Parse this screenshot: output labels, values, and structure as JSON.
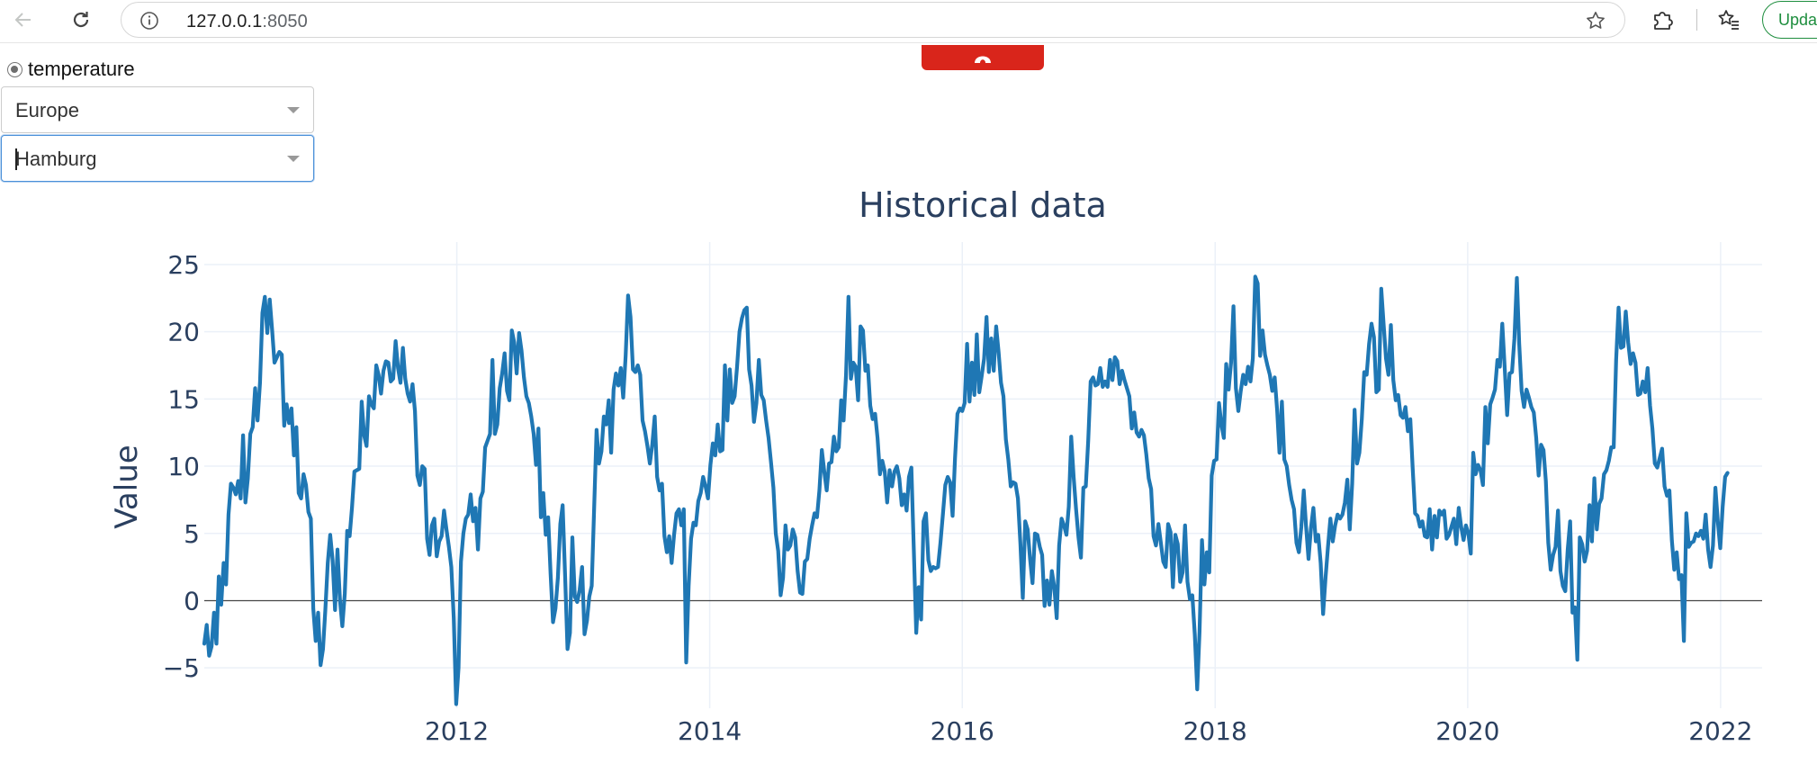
{
  "browser": {
    "url_host": "127.0.0.1",
    "url_port": ":8050",
    "update_label": "Upda"
  },
  "controls": {
    "radio_label": "temperature",
    "region_value": "Europe",
    "city_value": "Hamburg"
  },
  "chart_data": {
    "type": "line",
    "title": "Historical data",
    "xlabel": "",
    "ylabel": "Value",
    "xlim": [
      "2010-01-01",
      "2022-05-01"
    ],
    "ylim": [
      -8,
      26
    ],
    "x_ticks": [
      "2012",
      "2014",
      "2016",
      "2018",
      "2020",
      "2022"
    ],
    "y_ticks": [
      -5,
      0,
      5,
      10,
      15,
      20,
      25
    ],
    "grid": true,
    "series_color": "#1f77b4",
    "series": [
      {
        "x_start": "2010-01-01",
        "step_days": 7,
        "values": [
          -3.2,
          -1.8,
          -4.1,
          -3.4,
          -0.9,
          -3.2,
          1.8,
          -0.3,
          2.8,
          1.2,
          6.4,
          8.7,
          8.4,
          7.9,
          8.9,
          7.6,
          12.3,
          7.3,
          9.1,
          12.4,
          12.9,
          15.8,
          13.4,
          16.2,
          21.4,
          22.6,
          19.9,
          22.4,
          20.2,
          17.7,
          18.1,
          18.5,
          18.3,
          13.0,
          14.6,
          13.2,
          14.3,
          10.8,
          12.9,
          8.0,
          7.6,
          9.4,
          8.6,
          6.6,
          6.1,
          -0.6,
          -3.0,
          -0.9,
          -4.8,
          -3.6,
          -0.7,
          2.8,
          4.9,
          3.0,
          -0.7,
          3.8,
          0.1,
          -1.9,
          0.5,
          5.2,
          4.8,
          6.9,
          9.6,
          9.7,
          9.8,
          14.8,
          12.3,
          11.5,
          15.2,
          14.6,
          14.3,
          17.5,
          16.8,
          15.4,
          17.1,
          17.8,
          17.7,
          16.3,
          16.5,
          19.3,
          17.3,
          16.2,
          18.8,
          16.5,
          15.4,
          14.8,
          16.1,
          14.1,
          9.3,
          8.6,
          10.0,
          9.8,
          4.6,
          3.4,
          5.6,
          6.1,
          3.3,
          4.4,
          4.8,
          6.7,
          5.3,
          4.0,
          2.5,
          -1.3,
          -7.7,
          -5.0,
          2.9,
          5.0,
          6.1,
          6.4,
          7.9,
          5.9,
          6.9,
          3.8,
          7.6,
          8.1,
          11.4,
          11.9,
          12.4,
          17.9,
          12.4,
          13.1,
          15.8,
          16.9,
          18.4,
          15.6,
          14.9,
          20.1,
          19.2,
          16.9,
          19.9,
          18.6,
          16.6,
          15.2,
          14.7,
          13.7,
          12.4,
          10.1,
          12.8,
          6.2,
          8.0,
          4.9,
          6.2,
          2.0,
          -1.6,
          -0.6,
          1.7,
          5.7,
          7.1,
          1.9,
          -3.6,
          -2.4,
          4.7,
          0.3,
          -0.1,
          0.8,
          2.5,
          -2.5,
          -1.5,
          0.3,
          1.1,
          6.9,
          12.7,
          10.2,
          11.1,
          13.7,
          13.1,
          14.9,
          11.0,
          15.7,
          16.9,
          16.0,
          17.3,
          15.1,
          18.2,
          22.7,
          21.1,
          17.2,
          17.0,
          17.5,
          16.8,
          13.4,
          12.6,
          11.5,
          10.2,
          11.6,
          13.7,
          9.2,
          8.2,
          8.7,
          4.8,
          3.6,
          4.8,
          2.8,
          4.9,
          6.5,
          6.8,
          5.6,
          6.8,
          -4.6,
          1.1,
          4.6,
          5.8,
          5.6,
          7.4,
          8.0,
          9.2,
          8.5,
          7.6,
          10.1,
          11.7,
          10.8,
          13.1,
          11.1,
          11.2,
          17.5,
          13.4,
          17.2,
          14.7,
          15.2,
          17.4,
          20.0,
          21.0,
          21.6,
          21.8,
          17.2,
          16.0,
          13.3,
          14.7,
          17.9,
          15.3,
          14.9,
          13.4,
          12.1,
          10.3,
          8.4,
          5.0,
          3.7,
          0.4,
          1.7,
          5.6,
          3.8,
          4.1,
          5.3,
          4.7,
          2.2,
          0.6,
          0.5,
          2.9,
          3.1,
          4.6,
          5.6,
          6.5,
          6.2,
          8.2,
          11.2,
          9.6,
          8.2,
          10.2,
          10.3,
          12.2,
          11.1,
          11.4,
          14.9,
          13.4,
          16.8,
          22.6,
          16.5,
          17.7,
          17.4,
          14.9,
          20.4,
          20.1,
          17.1,
          17.5,
          14.5,
          13.5,
          13.9,
          12.1,
          9.4,
          10.4,
          9.6,
          7.3,
          9.7,
          8.5,
          9.6,
          10.0,
          9.1,
          7.1,
          7.9,
          6.7,
          9.2,
          9.9,
          3.8,
          -2.4,
          1.0,
          -1.4,
          5.9,
          6.5,
          3.0,
          2.2,
          2.5,
          2.4,
          2.5,
          4.3,
          6.4,
          8.6,
          9.2,
          8.8,
          6.3,
          10.6,
          13.9,
          14.3,
          14.1,
          14.7,
          19.1,
          14.8,
          17.7,
          15.3,
          19.8,
          15.5,
          16.7,
          18.0,
          21.1,
          17.0,
          19.5,
          17.1,
          20.4,
          18.5,
          16.2,
          15.2,
          12.0,
          10.5,
          8.5,
          8.8,
          8.7,
          7.6,
          4.3,
          0.2,
          5.9,
          5.3,
          3.1,
          1.3,
          5.0,
          4.9,
          4.0,
          3.4,
          -0.4,
          1.5,
          -0.3,
          2.2,
          1.0,
          -1.3,
          4.1,
          6.1,
          5.6,
          4.9,
          7.0,
          12.2,
          9.2,
          6.8,
          4.7,
          3.2,
          8.4,
          8.5,
          11.9,
          16.3,
          16.6,
          16.0,
          16.1,
          17.3,
          15.9,
          16.3,
          15.9,
          17.9,
          16.4,
          18.1,
          17.8,
          16.1,
          17.1,
          16.4,
          15.8,
          15.2,
          12.8,
          14.0,
          12.5,
          12.2,
          12.7,
          12.3,
          10.9,
          9.1,
          8.3,
          4.8,
          4.1,
          5.7,
          4.3,
          2.9,
          2.5,
          5.7,
          5.1,
          1.0,
          4.9,
          4.2,
          1.4,
          2.1,
          5.6,
          1.4,
          0.1,
          0.4,
          -2.5,
          -6.6,
          -2.3,
          4.5,
          1.2,
          3.6,
          2.1,
          9.3,
          10.4,
          10.5,
          14.7,
          13.1,
          12.1,
          17.6,
          15.7,
          17.7,
          21.9,
          15.8,
          14.1,
          15.6,
          16.8,
          16.1,
          17.4,
          16.3,
          18.0,
          24.1,
          23.6,
          18.2,
          20.1,
          18.3,
          17.5,
          16.8,
          15.6,
          16.6,
          14.2,
          11.0,
          14.8,
          10.5,
          10.0,
          8.6,
          7.5,
          6.8,
          4.3,
          3.6,
          5.5,
          8.2,
          5.5,
          3.1,
          5.4,
          6.9,
          4.4,
          4.9,
          2.8,
          -1.0,
          1.7,
          4.0,
          6.1,
          4.4,
          5.6,
          6.4,
          6.1,
          6.4,
          7.3,
          9.0,
          5.3,
          8.7,
          14.2,
          10.2,
          11.0,
          13.5,
          17.0,
          16.8,
          19.1,
          20.6,
          19.6,
          15.5,
          15.7,
          23.2,
          20.5,
          18.0,
          16.8,
          20.5,
          16.4,
          14.9,
          15.3,
          13.8,
          13.6,
          14.4,
          12.6,
          13.5,
          9.9,
          6.5,
          6.3,
          5.5,
          5.9,
          4.8,
          4.7,
          6.8,
          3.8,
          6.3,
          4.7,
          6.7,
          6.4,
          6.7,
          4.6,
          4.9,
          5.5,
          6.1,
          4.2,
          6.9,
          5.5,
          4.5,
          5.6,
          5.0,
          3.5,
          11.0,
          9.4,
          10.1,
          9.7,
          8.6,
          14.4,
          11.7,
          14.6,
          15.1,
          15.7,
          17.9,
          17.4,
          20.6,
          17.3,
          13.8,
          16.9,
          17.0,
          19.5,
          24.0,
          19.1,
          15.6,
          14.4,
          15.7,
          15.1,
          14.4,
          14.0,
          12.1,
          9.3,
          11.6,
          11.2,
          8.9,
          4.3,
          2.3,
          3.4,
          4.0,
          6.7,
          2.2,
          1.1,
          0.7,
          3.8,
          5.9,
          -0.9,
          -0.5,
          -4.4,
          4.7,
          4.2,
          2.9,
          3.7,
          7.1,
          4.4,
          9.1,
          5.3,
          7.2,
          7.6,
          9.4,
          9.7,
          10.4,
          11.4,
          11.4,
          17.9,
          21.8,
          18.8,
          18.9,
          21.5,
          19.2,
          17.6,
          18.4,
          17.7,
          15.3,
          15.4,
          16.3,
          15.5,
          17.3,
          14.5,
          12.8,
          10.2,
          9.9,
          10.6,
          11.3,
          8.5,
          7.8,
          8.2,
          4.5,
          2.3,
          3.6,
          1.6,
          1.9,
          -3.0,
          6.5,
          4.0,
          4.3,
          4.4,
          5.0,
          4.8,
          5.2,
          4.6,
          6.4,
          3.8,
          2.5,
          4.1,
          8.4,
          5.9,
          3.9,
          7.0,
          9.2,
          9.5
        ]
      }
    ]
  }
}
